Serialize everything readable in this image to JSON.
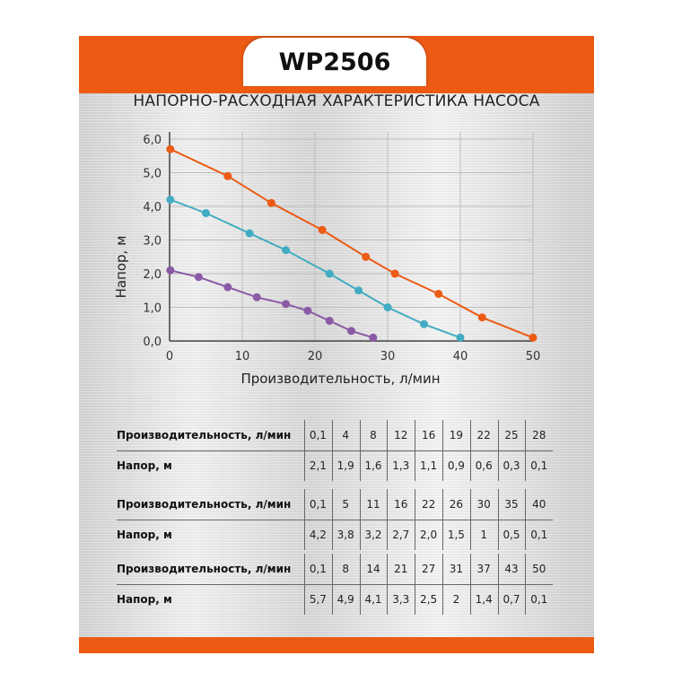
{
  "header": {
    "model": "WP2506"
  },
  "accent_color": "#ec5a14",
  "chart_data": {
    "type": "line",
    "title": "НАПОРНО-РАСХОДНАЯ ХАРАКТЕРИСТИКА НАСОСА",
    "xlabel": "Производительность, л/мин",
    "ylabel": "Напор, м",
    "xlim": [
      0,
      50
    ],
    "ylim": [
      0,
      6
    ],
    "xticks": [
      "0",
      "10",
      "20",
      "30",
      "40",
      "50"
    ],
    "yticks": [
      "0,0",
      "1,0",
      "2,0",
      "3,0",
      "4,0",
      "5,0",
      "6,0"
    ],
    "grid": true,
    "series": [
      {
        "color": "#8a5aa6",
        "x": [
          0.1,
          4,
          8,
          12,
          16,
          19,
          22,
          25,
          28
        ],
        "y": [
          2.1,
          1.9,
          1.6,
          1.3,
          1.1,
          0.9,
          0.6,
          0.3,
          0.1
        ]
      },
      {
        "color": "#41acc2",
        "x": [
          0.1,
          5,
          11,
          16,
          22,
          26,
          30,
          35,
          40
        ],
        "y": [
          4.2,
          3.8,
          3.2,
          2.7,
          2.0,
          1.5,
          1.0,
          0.5,
          0.1
        ]
      },
      {
        "color": "#ec5a14",
        "x": [
          0.1,
          8,
          14,
          21,
          27,
          31,
          37,
          43,
          50
        ],
        "y": [
          5.7,
          4.9,
          4.1,
          3.3,
          2.5,
          2.0,
          1.4,
          0.7,
          0.1
        ]
      }
    ]
  },
  "tables": [
    {
      "flow_label": "Производительность, л/мин",
      "head_label": "Напор, м",
      "flow": [
        "0,1",
        "4",
        "8",
        "12",
        "16",
        "19",
        "22",
        "25",
        "28"
      ],
      "head": [
        "2,1",
        "1,9",
        "1,6",
        "1,3",
        "1,1",
        "0,9",
        "0,6",
        "0,3",
        "0,1"
      ]
    },
    {
      "flow_label": "Производительность, л/мин",
      "head_label": "Напор, м",
      "flow": [
        "0,1",
        "5",
        "11",
        "16",
        "22",
        "26",
        "30",
        "35",
        "40"
      ],
      "head": [
        "4,2",
        "3,8",
        "3,2",
        "2,7",
        "2,0",
        "1,5",
        "1",
        "0,5",
        "0,1"
      ]
    },
    {
      "flow_label": "Производительность, л/мин",
      "head_label": "Напор, м",
      "flow": [
        "0,1",
        "8",
        "14",
        "21",
        "27",
        "31",
        "37",
        "43",
        "50"
      ],
      "head": [
        "5,7",
        "4,9",
        "4,1",
        "3,3",
        "2,5",
        "2",
        "1,4",
        "0,7",
        "0,1"
      ]
    }
  ]
}
